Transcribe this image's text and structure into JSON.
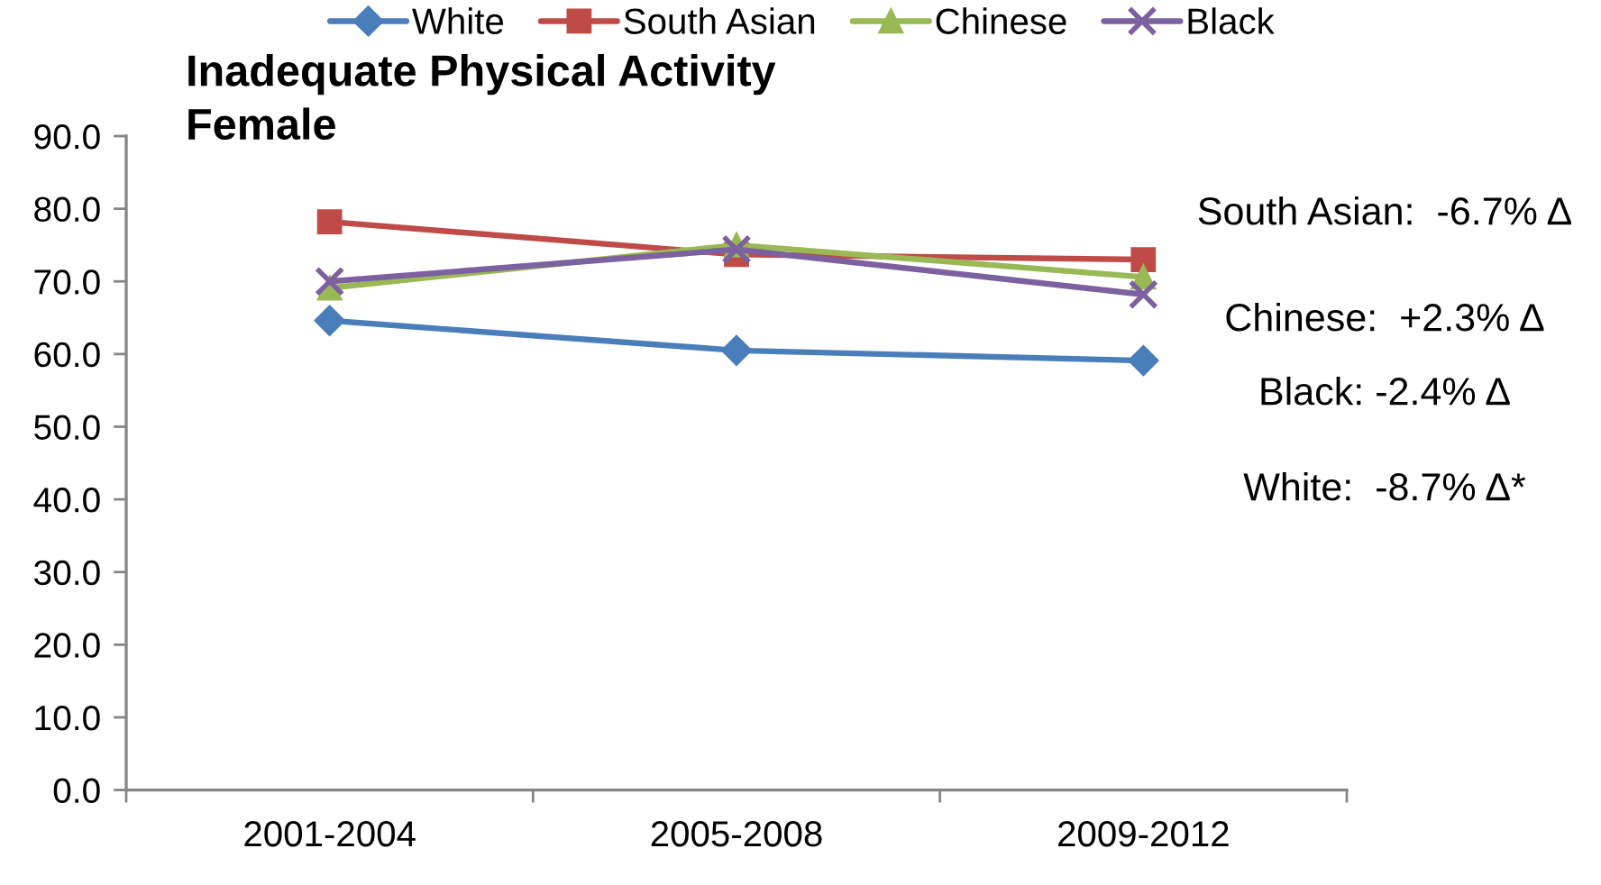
{
  "chart_data": {
    "type": "line",
    "title": "Inadequate Physical Activity\nFemale",
    "categories": [
      "2001-2004",
      "2005-2008",
      "2009-2012"
    ],
    "series": [
      {
        "name": "White",
        "color": "#4a7ebb",
        "marker": "diamond",
        "values": [
          64.6,
          60.5,
          59.1
        ]
      },
      {
        "name": "South Asian",
        "color": "#be4b48",
        "marker": "square",
        "values": [
          78.2,
          73.7,
          73.0
        ]
      },
      {
        "name": "Chinese",
        "color": "#98b954",
        "marker": "triangle",
        "values": [
          69.1,
          75.0,
          70.6
        ]
      },
      {
        "name": "Black",
        "color": "#7d60a0",
        "marker": "cross",
        "values": [
          70.0,
          74.4,
          68.2
        ]
      }
    ],
    "ylim": [
      0,
      90
    ],
    "yticks": [
      {
        "value": 0,
        "label": "0.0"
      },
      {
        "value": 10,
        "label": "10.0"
      },
      {
        "value": 20,
        "label": "20.0"
      },
      {
        "value": 30,
        "label": "30.0"
      },
      {
        "value": 40,
        "label": "40.0"
      },
      {
        "value": 50,
        "label": "50.0"
      },
      {
        "value": 60,
        "label": "60.0"
      },
      {
        "value": 70,
        "label": "70.0"
      },
      {
        "value": 80,
        "label": "80.0"
      },
      {
        "value": 90,
        "label": "90.0"
      }
    ],
    "legend": "top",
    "line_style": "solid",
    "annotations": [
      "South Asian:  -6.7% Δ",
      "Chinese:  +2.3% Δ",
      "Black: -2.4% Δ",
      "White:  -8.7% Δ*"
    ]
  }
}
